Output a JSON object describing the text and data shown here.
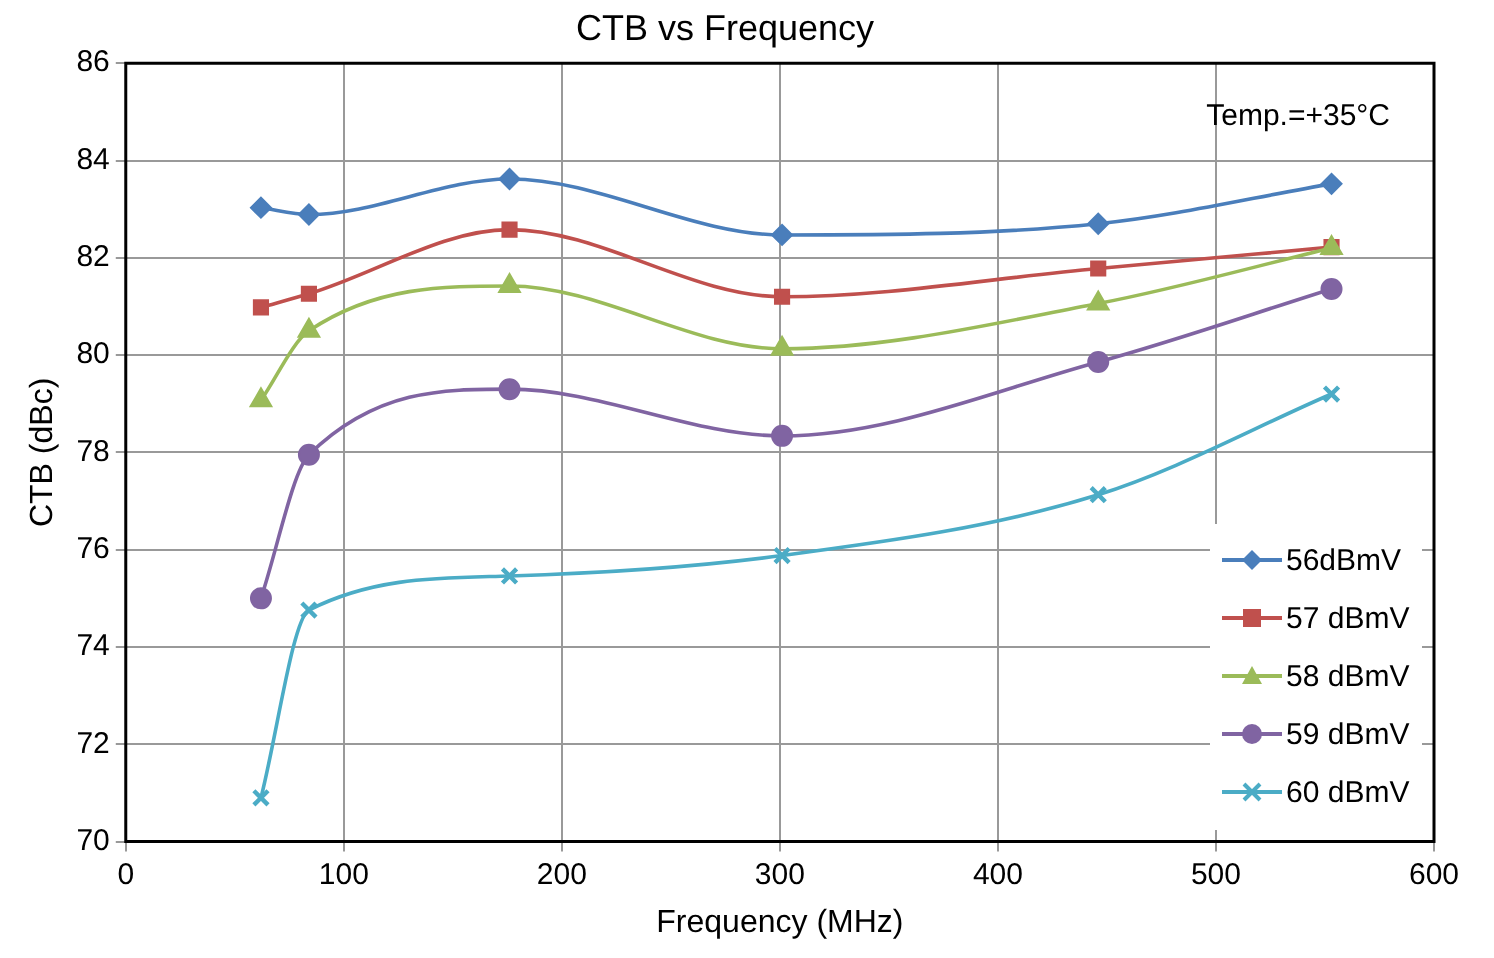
{
  "chart_data": {
    "type": "line",
    "title": "CTB vs Frequency",
    "xlabel": "Frequency (MHz)",
    "ylabel": "CTB (dBc)",
    "x": [
      62,
      84,
      176,
      301,
      446,
      553
    ],
    "series": [
      {
        "name": "56dBmV",
        "color": "#4a7ebb",
        "marker": "diamond",
        "values": [
          83.03,
          82.89,
          83.62,
          82.47,
          82.7,
          83.52
        ]
      },
      {
        "name": "57 dBmV",
        "color": "#c0504d",
        "marker": "square",
        "values": [
          80.98,
          81.26,
          82.58,
          81.2,
          81.78,
          82.22
        ]
      },
      {
        "name": "58 dBmV",
        "color": "#9bbb59",
        "marker": "triangle",
        "values": [
          79.07,
          80.5,
          81.42,
          80.13,
          81.06,
          82.2
        ]
      },
      {
        "name": "59 dBmV",
        "color": "#8064a2",
        "marker": "circle",
        "values": [
          75.0,
          77.95,
          79.3,
          78.34,
          79.86,
          81.36
        ]
      },
      {
        "name": "60 dBmV",
        "color": "#4bacc6",
        "marker": "cross",
        "values": [
          70.9,
          74.76,
          75.46,
          75.88,
          77.13,
          79.2
        ]
      }
    ],
    "xlim": [
      0,
      600
    ],
    "xticks": [
      0,
      100,
      200,
      300,
      400,
      500,
      600
    ],
    "ylim": [
      70,
      86
    ],
    "yticks": [
      70,
      72,
      74,
      76,
      78,
      80,
      82,
      84,
      86
    ],
    "grid": true,
    "legend": "bottom right",
    "line_style": "solid",
    "annotations": [
      "Temp.=+35°C"
    ]
  }
}
